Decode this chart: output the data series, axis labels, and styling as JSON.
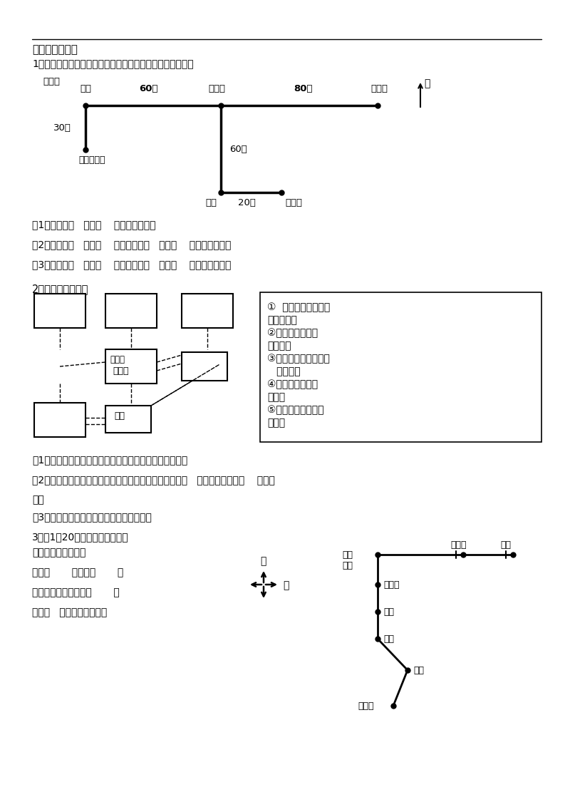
{
  "bg_color": "#ffffff",
  "page_title": "二、解决问题：",
  "q1_title": "1、三个小朋友都从家出发去看电影，请你根据下图填一填。",
  "q1_label": "图标：",
  "q1_questions": [
    "（1）奇奇向（   ）走（    ）米到电影院。",
    "（2）格格向（   ）走（    ）米，再向（   ）走（    ）米到电影院。",
    "（3）皮皮向（   ）走（    ）米，再向（   ）走（    ）米到电影院。"
  ],
  "q2_title": "2、根据描述填图。",
  "q2_description": [
    "①  鸟的天堂在小树林",
    "的东北角；",
    "②熊猫馆在小树林",
    "的东面；",
    "③海底世界在小树林的",
    "   西南角；",
    "④猴山在小树林的",
    "北面；",
    "⑤虎山在小树林的西",
    "北角。"
  ],
  "q2_questions": [
    "（1）根据上面的描述，用序号在方框中标出它们的位置。",
    "（2）小明从大门进去，想到虎山去玩，那么他可以先向（   ）方向走，再朝（    ）方向",
    "走。",
    "（3）请你写一写从大门到鸟的天堂的路线："
  ],
  "q3_title": "3、（1）20路汽车从火车站到体",
  "q3_text": [
    "育馆的行驶路线是：",
    "先向（       ）行驶（       ）",
    "站到新新小区，再向（       ）",
    "行驶（   ）站到菜场，再向"
  ]
}
